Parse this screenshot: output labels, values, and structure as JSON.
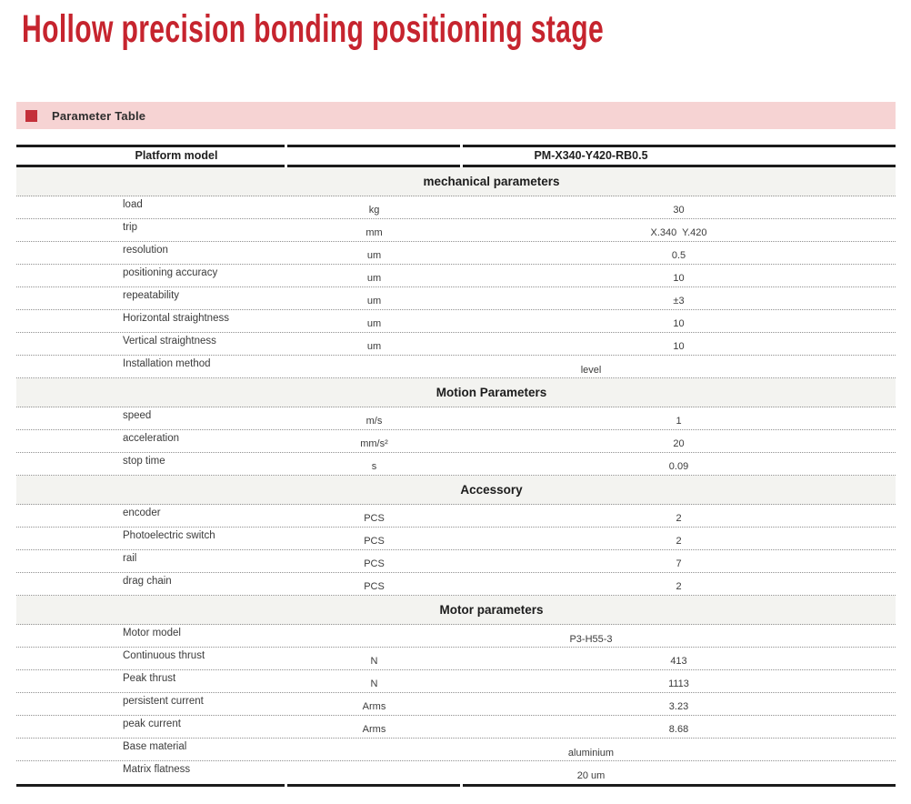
{
  "page": {
    "title": "Hollow precision bonding positioning stage"
  },
  "banner": {
    "label": "Parameter Table",
    "bullet_icon": "red-square-bullet"
  },
  "table": {
    "header": {
      "label": "Platform model",
      "value": "PM-X340-Y420-RB0.5"
    },
    "sections": [
      {
        "title": "mechanical parameters",
        "rows": [
          {
            "name": "load",
            "unit": "kg",
            "value": "30"
          },
          {
            "name": "trip",
            "unit": "mm",
            "value": "X.340  Y.420"
          },
          {
            "name": "resolution",
            "unit": "um",
            "value": "0.5"
          },
          {
            "name": "positioning accuracy",
            "unit": "um",
            "value": "10"
          },
          {
            "name": "repeatability",
            "unit": "um",
            "value": "±3"
          },
          {
            "name": "Horizontal straightness",
            "unit": "um",
            "value": "10"
          },
          {
            "name": "Vertical straightness",
            "unit": "um",
            "value": "10"
          },
          {
            "name": "Installation method",
            "merged_value": "level"
          }
        ]
      },
      {
        "title": "Motion Parameters",
        "rows": [
          {
            "name": "speed",
            "unit": "m/s",
            "value": "1"
          },
          {
            "name": "acceleration",
            "unit": "mm/s²",
            "value": "20"
          },
          {
            "name": "stop time",
            "unit": "s",
            "value": "0.09"
          }
        ]
      },
      {
        "title": "Accessory",
        "rows": [
          {
            "name": "encoder",
            "unit": "PCS",
            "value": "2"
          },
          {
            "name": "Photoelectric switch",
            "unit": "PCS",
            "value": "2"
          },
          {
            "name": "rail",
            "unit": "PCS",
            "value": "7"
          },
          {
            "name": "drag chain",
            "unit": "PCS",
            "value": "2"
          }
        ]
      },
      {
        "title": "Motor parameters",
        "rows": [
          {
            "name": "Motor model",
            "merged_value": "P3-H55-3"
          },
          {
            "name": "Continuous thrust",
            "unit": "N",
            "value": "413"
          },
          {
            "name": "Peak thrust",
            "unit": "N",
            "value": "1113"
          },
          {
            "name": "persistent current",
            "unit": "Arms",
            "value": "3.23"
          },
          {
            "name": "peak current",
            "unit": "Arms",
            "value": "8.68"
          },
          {
            "name": "Base material",
            "merged_value": "aluminium"
          },
          {
            "name": "Matrix flatness",
            "merged_value": "20 um"
          }
        ]
      }
    ]
  },
  "colors": {
    "accent_red": "#c6242e",
    "banner_pink": "#f6d3d3",
    "bullet_red": "#c4303a",
    "band_gray": "#f3f3f0"
  }
}
